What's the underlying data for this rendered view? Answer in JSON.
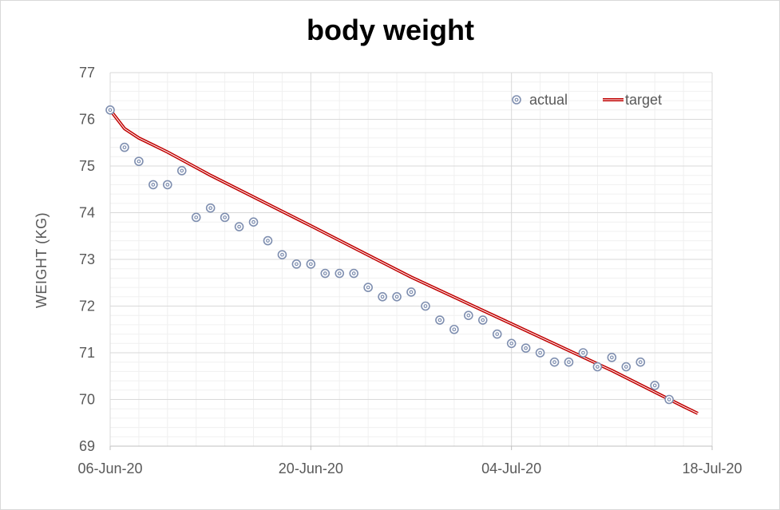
{
  "chart_data": {
    "type": "scatter",
    "title": "body weight",
    "xlabel": "",
    "ylabel": "WEIGHT (KG)",
    "x_ticks": [
      "06-Jun-20",
      "20-Jun-20",
      "04-Jul-20",
      "18-Jul-20"
    ],
    "xlim": [
      "2020-06-06",
      "2020-07-18"
    ],
    "ylim": [
      69,
      77
    ],
    "y_ticks": [
      69,
      70,
      71,
      72,
      73,
      74,
      75,
      76,
      77
    ],
    "grid": true,
    "legend_position": "top-right",
    "series": [
      {
        "name": "actual",
        "type": "scatter",
        "color": "#7f8fb0",
        "points": [
          [
            "2020-06-06",
            76.2
          ],
          [
            "2020-06-07",
            75.4
          ],
          [
            "2020-06-08",
            75.1
          ],
          [
            "2020-06-09",
            74.6
          ],
          [
            "2020-06-10",
            74.6
          ],
          [
            "2020-06-11",
            74.9
          ],
          [
            "2020-06-12",
            73.9
          ],
          [
            "2020-06-13",
            74.1
          ],
          [
            "2020-06-14",
            73.9
          ],
          [
            "2020-06-15",
            73.7
          ],
          [
            "2020-06-16",
            73.8
          ],
          [
            "2020-06-17",
            73.4
          ],
          [
            "2020-06-18",
            73.1
          ],
          [
            "2020-06-19",
            72.9
          ],
          [
            "2020-06-20",
            72.9
          ],
          [
            "2020-06-21",
            72.7
          ],
          [
            "2020-06-22",
            72.7
          ],
          [
            "2020-06-23",
            72.7
          ],
          [
            "2020-06-24",
            72.4
          ],
          [
            "2020-06-25",
            72.2
          ],
          [
            "2020-06-26",
            72.2
          ],
          [
            "2020-06-27",
            72.3
          ],
          [
            "2020-06-28",
            72.0
          ],
          [
            "2020-06-29",
            71.7
          ],
          [
            "2020-06-30",
            71.5
          ],
          [
            "2020-07-01",
            71.8
          ],
          [
            "2020-07-02",
            71.7
          ],
          [
            "2020-07-03",
            71.4
          ],
          [
            "2020-07-04",
            71.2
          ],
          [
            "2020-07-05",
            71.1
          ],
          [
            "2020-07-06",
            71.0
          ],
          [
            "2020-07-07",
            70.8
          ],
          [
            "2020-07-08",
            70.8
          ],
          [
            "2020-07-09",
            71.0
          ],
          [
            "2020-07-10",
            70.7
          ],
          [
            "2020-07-11",
            70.9
          ],
          [
            "2020-07-12",
            70.7
          ],
          [
            "2020-07-13",
            70.8
          ],
          [
            "2020-07-14",
            70.3
          ],
          [
            "2020-07-15",
            70.0
          ]
        ]
      },
      {
        "name": "target",
        "type": "line",
        "color": "#c00000",
        "points": [
          [
            "2020-06-06",
            76.2
          ],
          [
            "2020-06-07",
            75.8
          ],
          [
            "2020-06-08",
            75.6
          ],
          [
            "2020-06-09",
            75.45
          ],
          [
            "2020-06-10",
            75.3
          ],
          [
            "2020-06-13",
            74.8
          ],
          [
            "2020-06-20",
            73.72
          ],
          [
            "2020-06-27",
            72.62
          ],
          [
            "2020-07-04",
            71.62
          ],
          [
            "2020-07-11",
            70.62
          ],
          [
            "2020-07-16",
            69.85
          ],
          [
            "2020-07-17",
            69.7
          ]
        ]
      }
    ]
  }
}
